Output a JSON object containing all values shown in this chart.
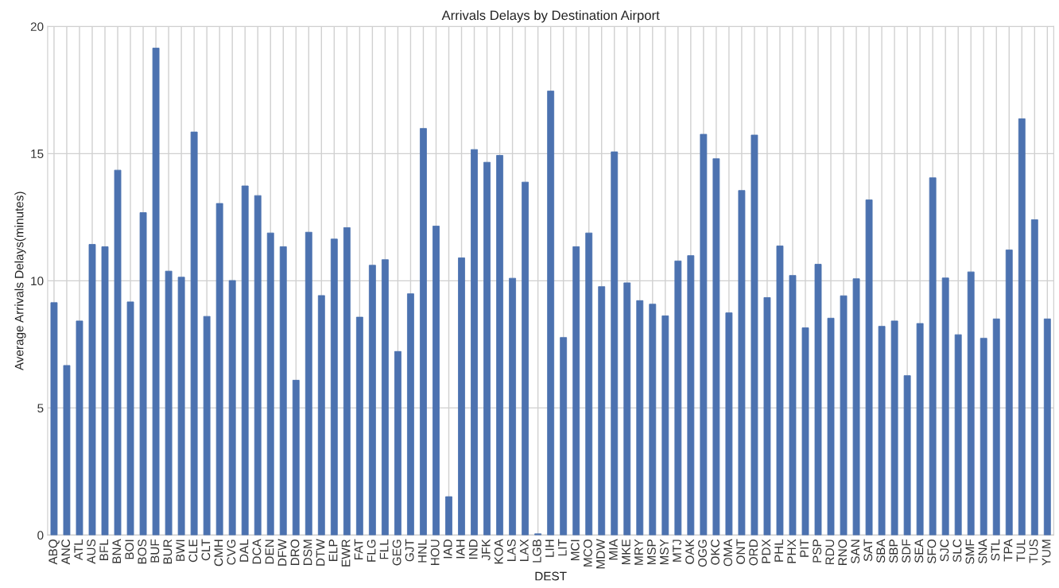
{
  "chart_data": {
    "type": "bar",
    "title": "Arrivals Delays by Destination Airport",
    "xlabel": "DEST",
    "ylabel": "Average Arrivals Delays(minutes)",
    "categories": [
      "ABQ",
      "ANC",
      "ATL",
      "AUS",
      "BFL",
      "BNA",
      "BOI",
      "BOS",
      "BUF",
      "BUR",
      "BWI",
      "CLE",
      "CLT",
      "CMH",
      "CVG",
      "DAL",
      "DCA",
      "DEN",
      "DFW",
      "DRO",
      "DSM",
      "DTW",
      "ELP",
      "EWR",
      "FAT",
      "FLG",
      "FLL",
      "GEG",
      "GJT",
      "HNL",
      "HOU",
      "IAD",
      "IAH",
      "IND",
      "JFK",
      "KOA",
      "LAS",
      "LAX",
      "LGB",
      "LIH",
      "LIT",
      "MCI",
      "MCO",
      "MDW",
      "MIA",
      "MKE",
      "MRY",
      "MSP",
      "MSY",
      "MTJ",
      "OAK",
      "OGG",
      "OKC",
      "OMA",
      "ONT",
      "ORD",
      "PDX",
      "PHL",
      "PHX",
      "PIT",
      "PSP",
      "RDU",
      "RNO",
      "SAN",
      "SAT",
      "SBA",
      "SBP",
      "SDF",
      "SEA",
      "SFO",
      "SJC",
      "SLC",
      "SMF",
      "SNA",
      "STL",
      "TPA",
      "TUL",
      "TUS",
      "YUM"
    ],
    "values": [
      9.14,
      6.67,
      8.42,
      11.43,
      11.34,
      14.35,
      9.17,
      12.68,
      19.15,
      10.38,
      10.14,
      15.85,
      8.6,
      13.04,
      10.01,
      13.73,
      13.35,
      11.88,
      11.34,
      6.09,
      11.91,
      9.42,
      11.64,
      12.09,
      8.57,
      10.61,
      10.83,
      7.22,
      9.49,
      15.99,
      12.15,
      1.51,
      10.9,
      15.16,
      14.66,
      14.93,
      10.1,
      13.88,
      0.05,
      17.46,
      7.77,
      11.34,
      11.88,
      9.77,
      15.07,
      9.92,
      9.22,
      9.08,
      8.62,
      10.78,
      10.99,
      15.76,
      14.8,
      8.74,
      13.55,
      15.73,
      9.34,
      11.37,
      10.21,
      8.15,
      10.65,
      8.53,
      9.41,
      10.08,
      13.18,
      8.21,
      8.42,
      6.27,
      8.32,
      14.05,
      10.11,
      7.88,
      10.35,
      7.74,
      8.5,
      11.21,
      16.37,
      12.4,
      8.5
    ],
    "color": "#4c72b0",
    "ylim": [
      0,
      20
    ],
    "yticks": [
      0,
      5,
      10,
      15,
      20
    ],
    "grid": true
  }
}
